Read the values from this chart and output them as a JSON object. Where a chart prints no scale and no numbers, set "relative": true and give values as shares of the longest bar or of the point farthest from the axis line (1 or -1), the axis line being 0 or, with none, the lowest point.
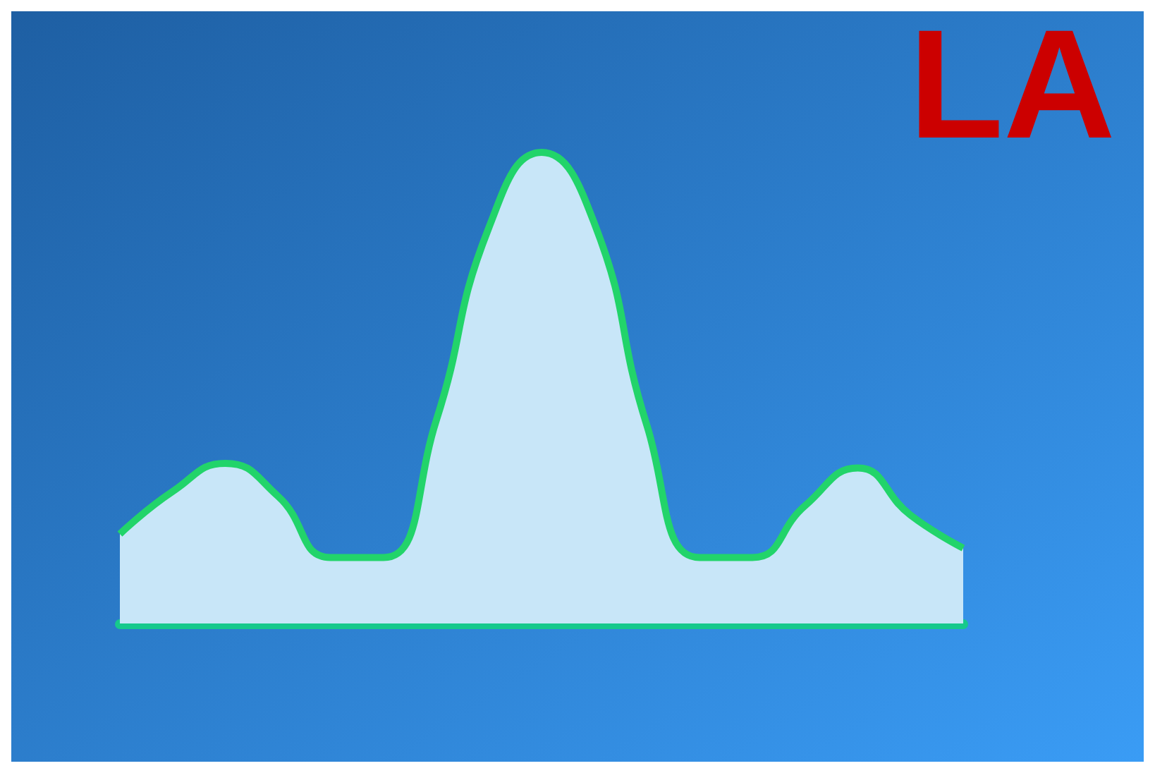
{
  "chart_data": {
    "type": "area",
    "title": "LA",
    "relative": true,
    "categories": [
      null,
      null,
      null,
      null,
      null,
      null,
      null,
      null,
      null,
      null,
      null,
      null,
      null,
      null,
      null,
      null,
      null
    ],
    "series": [
      {
        "color": "#22d46a",
        "values": [
          0.19,
          0.28,
          0.34,
          0.27,
          0.14,
          0.14,
          0.43,
          0.84,
          1,
          0.85,
          0.42,
          0.14,
          0.14,
          0.25,
          0.33,
          0.23,
          0.16
        ]
      }
    ],
    "grid": false,
    "marker": "none",
    "line_style": "solid"
  }
}
